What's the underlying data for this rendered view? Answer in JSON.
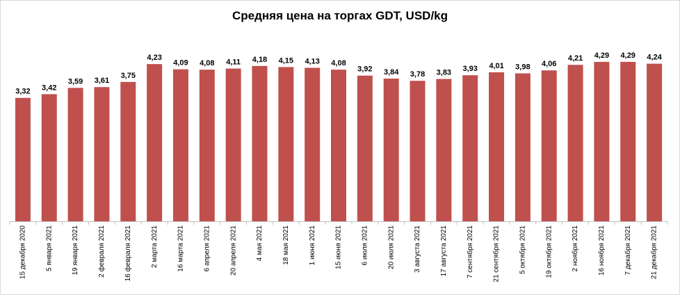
{
  "chart_data": {
    "type": "bar",
    "title": "Средняя цена на торгах GDT, USD/kg",
    "categories": [
      "15 декабря 2020",
      "5 января 2021",
      "19 января 2021",
      "2 февраля 2021",
      "16 февраля 2021",
      "2 марта 2021",
      "16 марта 2021",
      "6 апреля 2021",
      "20 апреля 2021",
      "4 мая 2021",
      "18 мая 2021",
      "1 июня 2021",
      "15 июня 2021",
      "6 июля 2021",
      "20 июля 2021",
      "3 августа 2021",
      "17 августа 2021",
      "7 сентября 2021",
      "21 сентября 2021",
      "5 октября 2021",
      "19 октября 2021",
      "2 ноября 2021",
      "16 ноября 2021",
      "7 декабря 2021",
      "21 декабря 2021"
    ],
    "values": [
      3.32,
      3.42,
      3.59,
      3.61,
      3.75,
      4.23,
      4.09,
      4.08,
      4.11,
      4.18,
      4.15,
      4.13,
      4.08,
      3.92,
      3.84,
      3.78,
      3.83,
      3.93,
      4.01,
      3.98,
      4.06,
      4.21,
      4.29,
      4.29,
      4.24
    ],
    "value_labels": [
      "3,32",
      "3,42",
      "3,59",
      "3,61",
      "3,75",
      "4,23",
      "4,09",
      "4,08",
      "4,11",
      "4,18",
      "4,15",
      "4,13",
      "4,08",
      "3,92",
      "3,84",
      "3,78",
      "3,83",
      "3,93",
      "4,01",
      "3,98",
      "4,06",
      "4,21",
      "4,29",
      "4,29",
      "4,24"
    ],
    "color": "#c0504d",
    "ylim": [
      0,
      5
    ]
  }
}
